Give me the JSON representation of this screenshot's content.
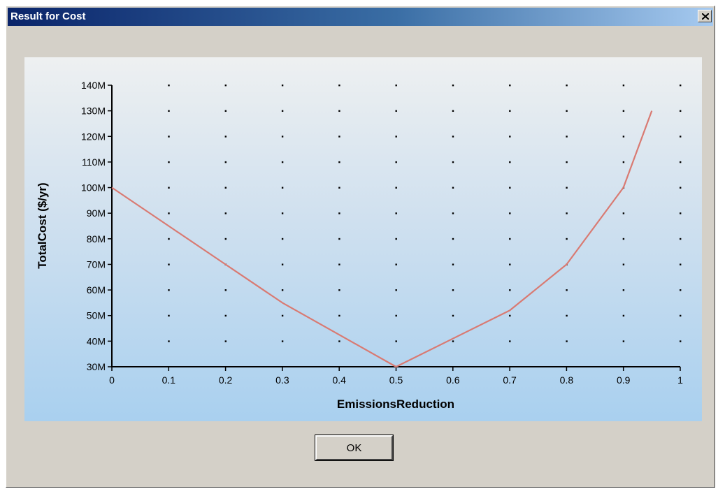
{
  "window": {
    "title": "Result for Cost",
    "close_label": "×"
  },
  "buttons": {
    "ok_label": "OK"
  },
  "colors": {
    "series_line": "#d97a72",
    "axis": "#000000"
  },
  "chart_data": {
    "type": "line",
    "xlabel": "EmissionsReduction",
    "ylabel": "TotalCost ($/yr)",
    "xlim": [
      0,
      1
    ],
    "ylim": [
      30,
      140
    ],
    "x_ticks": [
      {
        "value": 0,
        "label": "0"
      },
      {
        "value": 0.1,
        "label": "0.1"
      },
      {
        "value": 0.2,
        "label": "0.2"
      },
      {
        "value": 0.3,
        "label": "0.3"
      },
      {
        "value": 0.4,
        "label": "0.4"
      },
      {
        "value": 0.5,
        "label": "0.5"
      },
      {
        "value": 0.6,
        "label": "0.6"
      },
      {
        "value": 0.7,
        "label": "0.7"
      },
      {
        "value": 0.8,
        "label": "0.8"
      },
      {
        "value": 0.9,
        "label": "0.9"
      },
      {
        "value": 1,
        "label": "1"
      }
    ],
    "y_ticks": [
      {
        "value": 30,
        "label": "30M"
      },
      {
        "value": 40,
        "label": "40M"
      },
      {
        "value": 50,
        "label": "50M"
      },
      {
        "value": 60,
        "label": "60M"
      },
      {
        "value": 70,
        "label": "70M"
      },
      {
        "value": 80,
        "label": "80M"
      },
      {
        "value": 90,
        "label": "90M"
      },
      {
        "value": 100,
        "label": "100M"
      },
      {
        "value": 110,
        "label": "110M"
      },
      {
        "value": 120,
        "label": "120M"
      },
      {
        "value": 130,
        "label": "130M"
      },
      {
        "value": 140,
        "label": "140M"
      }
    ],
    "grid": "dots",
    "legend": "none",
    "series": [
      {
        "x": [
          0,
          0.1,
          0.2,
          0.3,
          0.4,
          0.5,
          0.6,
          0.7,
          0.8,
          0.9,
          0.95
        ],
        "y": [
          100,
          85,
          70,
          55,
          42.5,
          30,
          41,
          52,
          70,
          100,
          130
        ]
      }
    ]
  }
}
